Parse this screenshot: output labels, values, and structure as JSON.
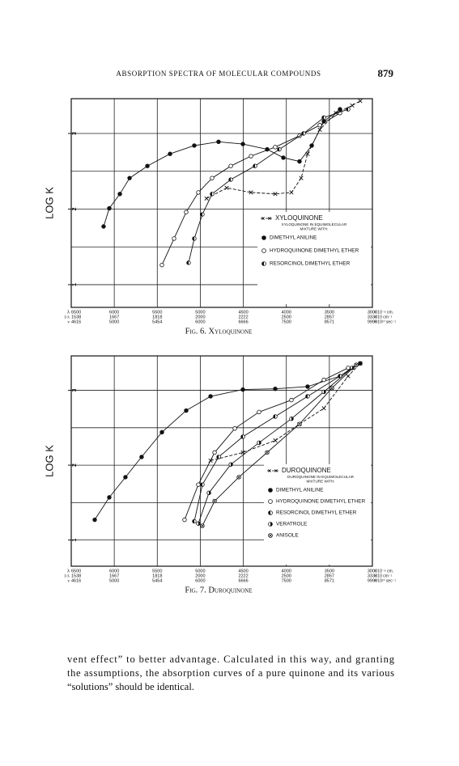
{
  "header": {
    "title": "ABSORPTION SPECTRA OF MOLECULAR COMPOUNDS",
    "page_number": "879"
  },
  "chart_data": [
    {
      "type": "line",
      "y_label": "LOG K",
      "caption": "Fig. 6. Xyloquinone",
      "xlim": [
        6500,
        3000
      ],
      "ylim": [
        0.7,
        3.46
      ],
      "xticks": [
        6500,
        6000,
        5500,
        5000,
        4500,
        4000,
        3500,
        3000
      ],
      "yticks": [
        1,
        2,
        3
      ],
      "ygrid": [
        1,
        1.5,
        2,
        2.5,
        3
      ],
      "grid": true,
      "x_symbol": "λ",
      "x_unit": "× 10⁻⁸ cm.",
      "x_rows": [
        {
          "symbol": "1/λ",
          "labels": [
            "1538",
            "1667",
            "1818",
            "2000",
            "2222",
            "2500",
            "2857",
            "3333"
          ],
          "unit": "× 10 cm⁻¹"
        },
        {
          "symbol": "ν",
          "labels": [
            "4616",
            "5000",
            "5454",
            "6000",
            "6666",
            "7500",
            "8571",
            "9999"
          ],
          "unit": "× 10¹⁰ sec⁻¹"
        }
      ],
      "legend_note": [
        "XYLOQUINONE IN EQUIMOLECULAR",
        "MIXTURE WITH:"
      ],
      "series": [
        {
          "name": "XYLOQUINONE",
          "marker": "x",
          "dash": "4 2",
          "color": "#111",
          "x": [
            4928,
            4693,
            4411,
            4129,
            3941,
            3828,
            3753,
            3611,
            3423,
            3235,
            3141
          ],
          "values": [
            2.14,
            2.28,
            2.22,
            2.2,
            2.22,
            2.41,
            2.73,
            3.05,
            3.27,
            3.37,
            3.43
          ]
        },
        {
          "name": "DIMETHYL ANILINE",
          "marker": "filled",
          "color": "#111",
          "x": [
            6124,
            6058,
            5935,
            5822,
            5615,
            5352,
            5070,
            4788,
            4505,
            4223,
            4035,
            3847,
            3705,
            3564,
            3376
          ],
          "values": [
            1.77,
            2.01,
            2.2,
            2.41,
            2.57,
            2.73,
            2.84,
            2.89,
            2.86,
            2.79,
            2.68,
            2.63,
            2.84,
            3.16,
            3.32
          ]
        },
        {
          "name": "HYDROQUINONE DIMETHYL ETHER",
          "marker": "open",
          "color": "#111",
          "x": [
            5446,
            5305,
            5164,
            5023,
            4863,
            4646,
            4411,
            4129,
            3847,
            3611,
            3376
          ],
          "values": [
            1.26,
            1.61,
            1.96,
            2.22,
            2.41,
            2.57,
            2.7,
            2.82,
            2.97,
            3.11,
            3.27
          ]
        },
        {
          "name": "RESORCINOL DIMETHYL ETHER",
          "marker": "half",
          "color": "#111",
          "x": [
            5136,
            5070,
            4976,
            4863,
            4646,
            4364,
            4082,
            3800,
            3564,
            3282
          ],
          "values": [
            1.29,
            1.61,
            1.93,
            2.2,
            2.39,
            2.57,
            2.79,
            3.0,
            3.21,
            3.32
          ]
        }
      ]
    },
    {
      "type": "line",
      "y_label": "LOG K",
      "caption": "Fig. 7. Duroquinone",
      "xlim": [
        6500,
        3000
      ],
      "ylim": [
        0.65,
        3.46
      ],
      "xticks": [
        6500,
        6000,
        5500,
        5000,
        4500,
        4000,
        3500,
        3000
      ],
      "yticks": [
        1,
        2,
        3
      ],
      "ygrid": [
        1,
        1.5,
        2,
        2.5,
        3
      ],
      "grid": true,
      "x_symbol": "λ",
      "x_unit": "× 10⁻⁸ cm.",
      "x_rows": [
        {
          "symbol": "1/λ",
          "labels": [
            "1538",
            "1667",
            "1818",
            "2000",
            "2222",
            "2500",
            "2857",
            "3333"
          ],
          "unit": "× 10 cm⁻¹"
        },
        {
          "symbol": "ν",
          "labels": [
            "4616",
            "5000",
            "5454",
            "6000",
            "6666",
            "7500",
            "8571",
            "9999"
          ],
          "unit": "× 10¹⁰ sec⁻¹"
        }
      ],
      "legend_note": [
        "DUROQUINONE IN EQUIMOLECULAR",
        "MIXTURE WITH:"
      ],
      "series": [
        {
          "name": "DUROQUINONE",
          "marker": "x",
          "dash": "4 2",
          "color": "#111",
          "x": [
            4881,
            4505,
            4129,
            3847,
            3564,
            3282,
            3141
          ],
          "values": [
            2.06,
            2.17,
            2.33,
            2.55,
            2.76,
            3.19,
            3.36
          ]
        },
        {
          "name": "DIMETHYL ANILINE",
          "marker": "filled",
          "color": "#111",
          "x": [
            6227,
            6058,
            5870,
            5682,
            5446,
            5164,
            4881,
            4505,
            4129,
            3753,
            3376,
            3141
          ],
          "values": [
            1.27,
            1.57,
            1.84,
            2.11,
            2.44,
            2.73,
            2.92,
            3.01,
            3.02,
            3.05,
            3.19,
            3.36
          ]
        },
        {
          "name": "HYDROQUINONE DIMETHYL ETHER",
          "marker": "open",
          "color": "#111",
          "x": [
            5183,
            5023,
            4834,
            4599,
            4317,
            3941,
            3564,
            3282
          ],
          "values": [
            1.27,
            1.74,
            2.17,
            2.49,
            2.71,
            2.87,
            3.14,
            3.3
          ]
        },
        {
          "name": "RESORCINOL DIMETHYL ETHER",
          "marker": "half",
          "color": "#111",
          "x": [
            5070,
            4976,
            4787,
            4505,
            4129,
            3753,
            3376,
            3188
          ],
          "values": [
            1.25,
            1.74,
            2.11,
            2.38,
            2.65,
            2.92,
            3.19,
            3.34
          ]
        },
        {
          "name": "VERATROLE",
          "marker": "half-right",
          "color": "#111",
          "x": [
            5023,
            4900,
            4646,
            4317,
            3941,
            3564,
            3235
          ],
          "values": [
            1.22,
            1.63,
            2.01,
            2.3,
            2.62,
            2.98,
            3.3
          ]
        },
        {
          "name": "ANISOLE",
          "marker": "cross-circle",
          "color": "#111",
          "x": [
            4976,
            4834,
            4552,
            4223,
            3847,
            3470,
            3188
          ],
          "values": [
            1.19,
            1.52,
            1.84,
            2.17,
            2.55,
            3.03,
            3.34
          ]
        }
      ]
    }
  ],
  "body": {
    "lines": [
      "vent effect” to better advantage.  Calculated in this way, and granting",
      "the assumptions, the absorption curves of a pure quinone and its various",
      "“solutions” should be identical."
    ]
  }
}
